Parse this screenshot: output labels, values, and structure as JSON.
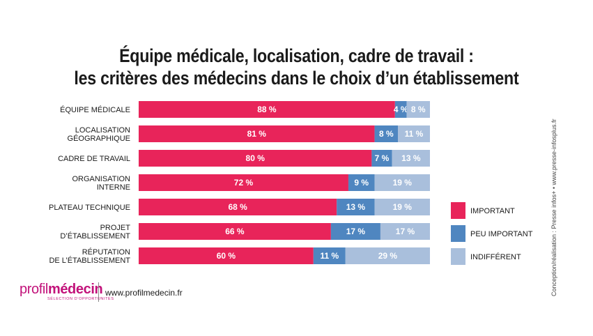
{
  "title_line1": "Équipe médicale, localisation, cadre de travail :",
  "title_line2": "les critères des médecins dans le choix d’un établissement",
  "chart_data": {
    "type": "bar",
    "orientation": "horizontal",
    "stacked": true,
    "categories": [
      [
        "ÉQUIPE MÉDICALE"
      ],
      [
        "LOCALISATION",
        "GÉOGRAPHIQUE"
      ],
      [
        "CADRE DE TRAVAIL"
      ],
      [
        "ORGANISATION",
        "INTERNE"
      ],
      [
        "PLATEAU TECHNIQUE"
      ],
      [
        "PROJET",
        "D’ÉTABLISSEMENT"
      ],
      [
        "RÉPUTATION",
        "DE L’ÉTABLISSEMENT"
      ]
    ],
    "series": [
      {
        "name": "IMPORTANT",
        "color": "#e8245a",
        "values": [
          88,
          81,
          80,
          72,
          68,
          66,
          60
        ]
      },
      {
        "name": "PEU IMPORTANT",
        "color": "#4f86c0",
        "values": [
          4,
          8,
          7,
          9,
          13,
          17,
          11
        ]
      },
      {
        "name": "INDIFFÉRENT",
        "color": "#a9bfdc",
        "values": [
          8,
          11,
          13,
          19,
          19,
          17,
          29
        ]
      }
    ],
    "value_suffix": "%",
    "xlim": [
      0,
      100
    ],
    "legend_position": "right",
    "grid": false
  },
  "credit": "Conception/réalisation : Presse infos+ • www.presse-infosplus.fr",
  "logo": {
    "part1": "profil",
    "part2": "médecin",
    "tagline": "SÉLECTION D’OPPORTUNITÉS"
  },
  "website": "www.profilmedecin.fr"
}
